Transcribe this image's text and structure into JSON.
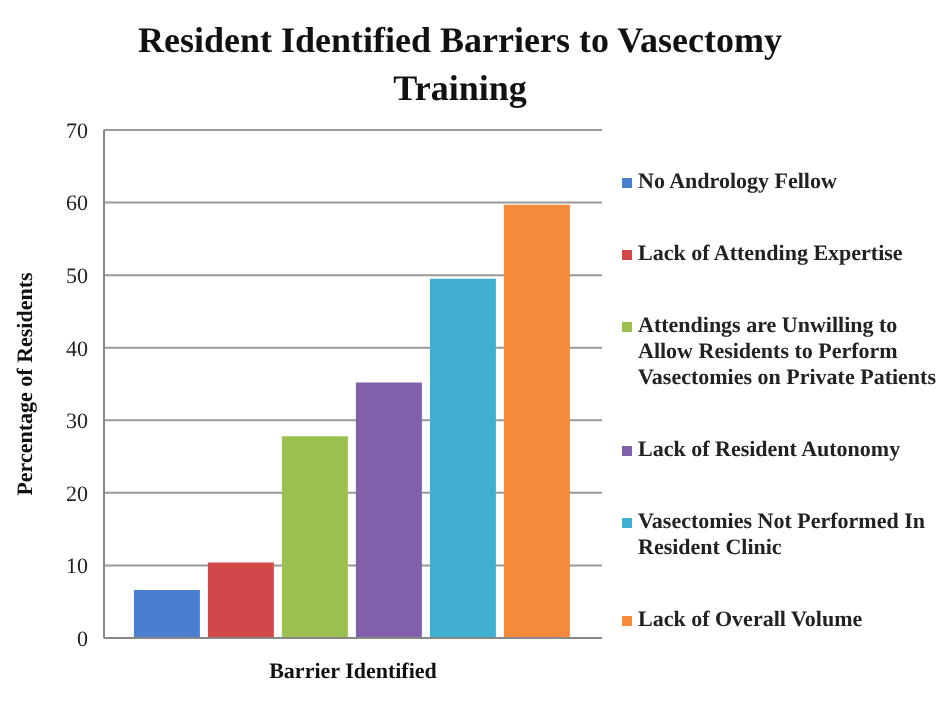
{
  "chart_data": {
    "type": "bar",
    "title": "Resident Identified Barriers to Vasectomy Training",
    "xlabel": "Barrier Identified",
    "ylabel": "Percentage of Residents",
    "categories": [
      null
    ],
    "series": [
      {
        "name": "No Andrology Fellow",
        "color": "#4a7fcf",
        "values": [
          6.6
        ]
      },
      {
        "name": "Lack of Attending Expertise",
        "color": "#d04848",
        "values": [
          10.4
        ]
      },
      {
        "name": "Attendings are Unwilling to Allow Residents to Perform Vasectomies on Private Patients",
        "color": "#9bc04f",
        "values": [
          27.8
        ]
      },
      {
        "name": "Lack of Resident Autonomy",
        "color": "#8060a8",
        "values": [
          35.2
        ]
      },
      {
        "name": "Vasectomies Not Performed In Resident Clinic",
        "color": "#3fb0d0",
        "values": [
          49.5
        ]
      },
      {
        "name": "Lack of Overall Volume",
        "color": "#f58a3a",
        "values": [
          59.7
        ]
      }
    ],
    "ylim": [
      0,
      70
    ],
    "yticks": [
      0,
      10,
      20,
      30,
      40,
      50,
      60,
      70
    ],
    "grid": "y",
    "legend": "right"
  }
}
